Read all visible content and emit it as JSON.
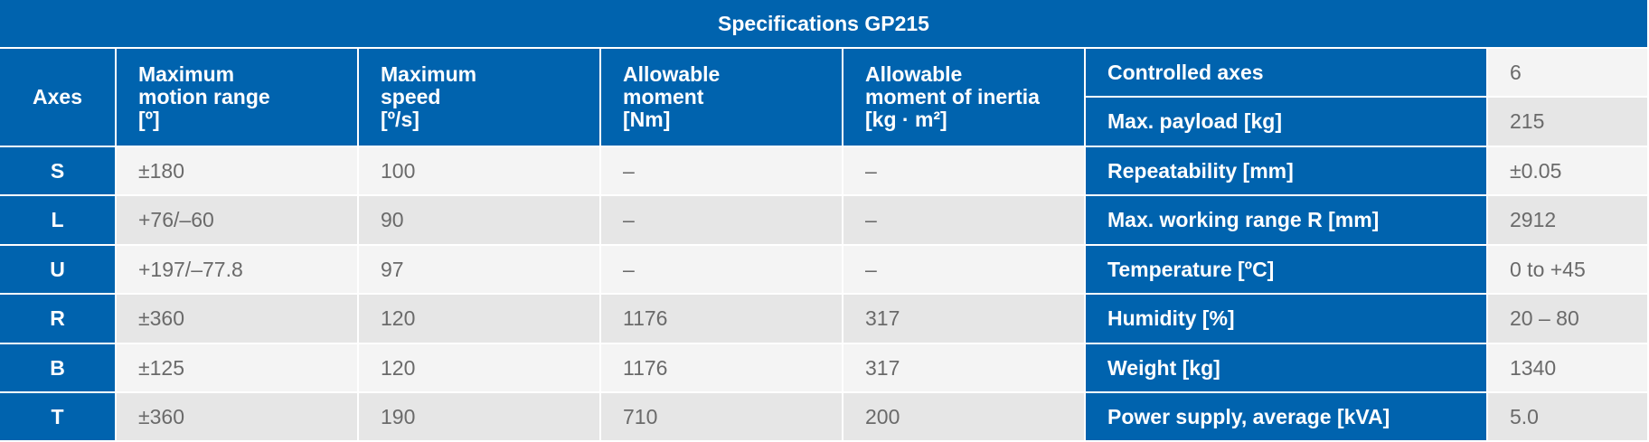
{
  "title": "Specifications GP215",
  "table": {
    "header": [
      "Axes",
      "Maximum\nmotion range\n[º]",
      "Maximum\nspeed\n[º/s]",
      "Allowable\nmoment\n[Nm]",
      "Allowable\nmoment of inertia\n[kg · m²]"
    ],
    "rows": [
      [
        "S",
        "±180",
        "100",
        "–",
        "–"
      ],
      [
        "L",
        "+76/–60",
        "90",
        "–",
        "–"
      ],
      [
        "U",
        "+197/–77.8",
        "97",
        "–",
        "–"
      ],
      [
        "R",
        "±360",
        "120",
        "1176",
        "317"
      ],
      [
        "B",
        "±125",
        "120",
        "1176",
        "317"
      ],
      [
        "T",
        "±360",
        "190",
        "710",
        "200"
      ]
    ]
  },
  "specs": [
    {
      "label": "Controlled axes",
      "value": "6"
    },
    {
      "label": "Max. payload [kg]",
      "value": "215"
    },
    {
      "label": "Repeatability [mm]",
      "value": "±0.05"
    },
    {
      "label": "Max. working range R [mm]",
      "value": "2912"
    },
    {
      "label": "Temperature [ºC]",
      "value": "0 to +45"
    },
    {
      "label": "Humidity [%]",
      "value": "20 – 80"
    },
    {
      "label": "Weight [kg]",
      "value": "1340"
    },
    {
      "label": "Power supply, average [kVA]",
      "value": "5.0"
    }
  ]
}
